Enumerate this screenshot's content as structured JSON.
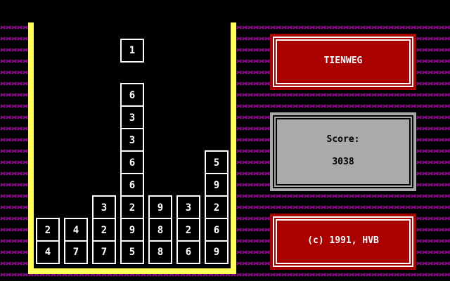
{
  "title": "TIENWEG",
  "score": {
    "label": "Score:",
    "value": "3038"
  },
  "copyright": "(c) 1991, HVB",
  "falling_piece": {
    "column": 4,
    "value": "1"
  },
  "columns": [
    [
      "2",
      "4"
    ],
    [
      "4",
      "7"
    ],
    [
      "3",
      "2",
      "7"
    ],
    [
      "6",
      "3",
      "3",
      "6",
      "6",
      "2",
      "9",
      "5"
    ],
    [
      "9",
      "8",
      "8"
    ],
    [
      "3",
      "2",
      "6"
    ],
    [
      "5",
      "9",
      "2",
      "6",
      "9"
    ]
  ],
  "colors": {
    "wall": "#ffff55",
    "pattern": "#aa00aa",
    "title_panel": "#aa0000",
    "score_panel": "#aaaaaa"
  }
}
